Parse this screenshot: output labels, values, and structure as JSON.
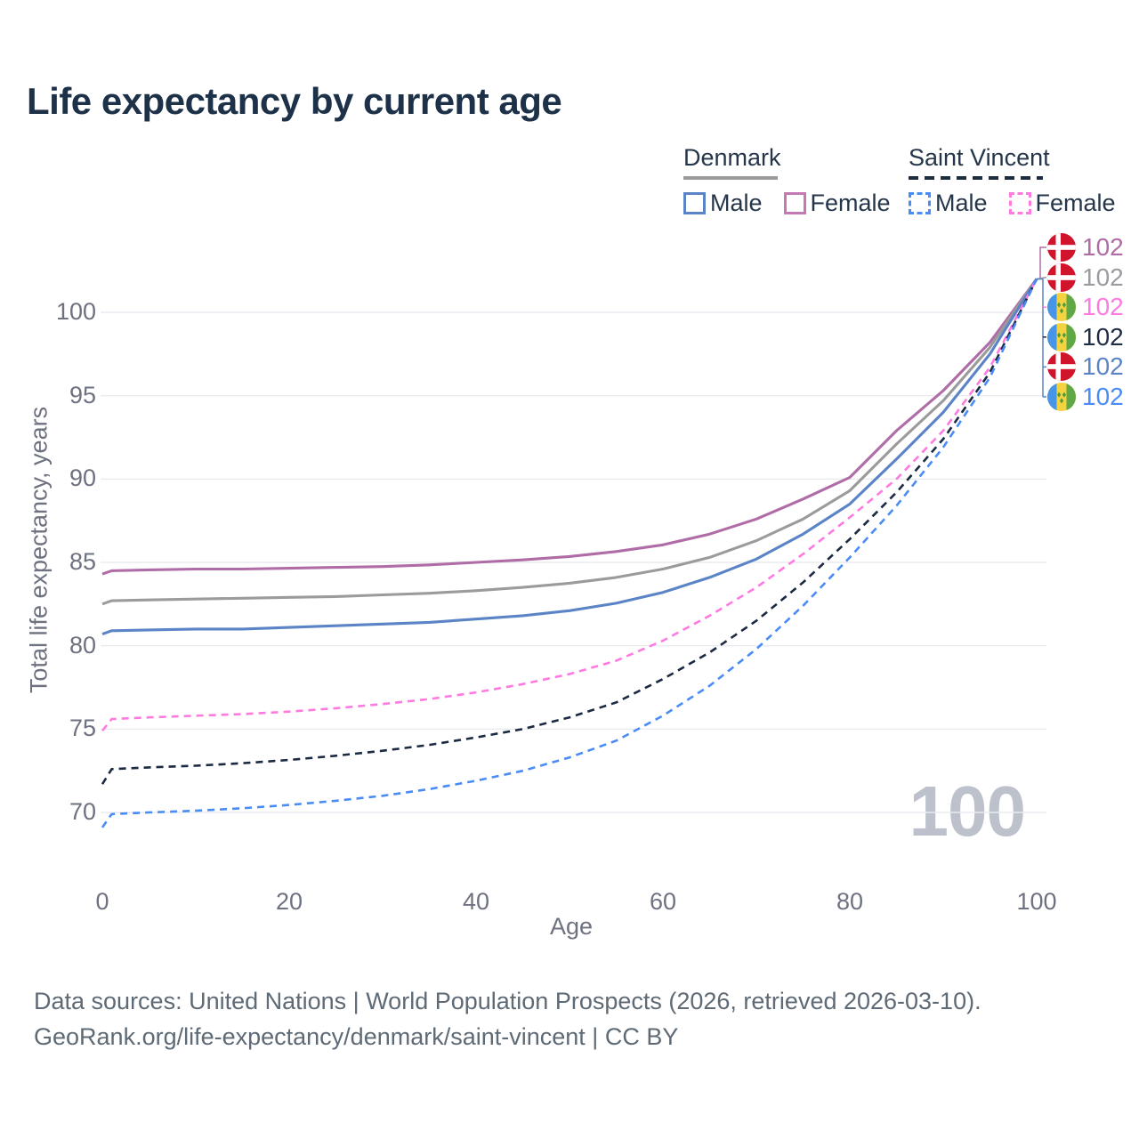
{
  "title": "Life expectancy by current age",
  "legend": {
    "groups": [
      {
        "label": "Denmark",
        "line_style": "solid",
        "underline_color": "#9b9b9b",
        "items": [
          {
            "label": "Male",
            "color": "#5b84c6"
          },
          {
            "label": "Female",
            "color": "#c479b5"
          }
        ]
      },
      {
        "label": "Saint Vincent",
        "line_style": "dashed",
        "underline_color": "#1e2c42",
        "items": [
          {
            "label": "Male",
            "color": "#4a8cf5"
          },
          {
            "label": "Female",
            "color": "#ff7ae0"
          }
        ]
      }
    ]
  },
  "watermark": "100",
  "source_line1": "Data sources: United Nations | World Population Prospects (2026, retrieved 2026-03-10).",
  "source_line2": "GeoRank.org/life-expectancy/denmark/saint-vincent | CC BY",
  "right_labels": [
    {
      "series": "Denmark Female",
      "flag": "denmark",
      "value": "102",
      "color": "#b06ca6"
    },
    {
      "series": "Denmark Both sexes",
      "flag": "denmark",
      "value": "102",
      "color": "#9b9ba1"
    },
    {
      "series": "Saint Vincent Female",
      "flag": "saint-vincent",
      "value": "102",
      "color": "#ff7ae0"
    },
    {
      "series": "Saint Vincent Both sexes",
      "flag": "saint-vincent",
      "value": "102",
      "color": "#1f2d45"
    },
    {
      "series": "Denmark Male",
      "flag": "denmark",
      "value": "102",
      "color": "#5b84c6"
    },
    {
      "series": "Saint Vincent Male",
      "flag": "saint-vincent",
      "value": "102",
      "color": "#4a8cf5"
    }
  ],
  "chart_data": {
    "type": "line",
    "title": "Life expectancy by current age",
    "xlabel": "Age",
    "ylabel": "Total life expectancy, years",
    "xlim": [
      0,
      100
    ],
    "ylim": [
      68,
      103
    ],
    "x_ticks": [
      0,
      20,
      40,
      60,
      80,
      100
    ],
    "y_ticks": [
      70,
      75,
      80,
      85,
      90,
      95,
      100
    ],
    "grid": "horizontal",
    "legend_position": "top-right",
    "x": [
      0,
      1,
      5,
      10,
      15,
      20,
      25,
      30,
      35,
      40,
      45,
      50,
      55,
      60,
      65,
      70,
      75,
      80,
      85,
      90,
      95,
      100
    ],
    "series": [
      {
        "name": "Denmark Female",
        "country": "Denmark",
        "sex": "Female",
        "color": "#b06ca6",
        "dashed": false,
        "values": [
          84.3,
          84.5,
          84.55,
          84.6,
          84.6,
          84.65,
          84.7,
          84.75,
          84.85,
          85.0,
          85.15,
          85.35,
          85.65,
          86.05,
          86.7,
          87.6,
          88.8,
          90.1,
          92.9,
          95.3,
          98.2,
          102
        ]
      },
      {
        "name": "Denmark Both sexes",
        "country": "Denmark",
        "sex": "Both",
        "color": "#9b9b9b",
        "dashed": false,
        "values": [
          82.5,
          82.7,
          82.75,
          82.8,
          82.85,
          82.9,
          82.95,
          83.05,
          83.15,
          83.3,
          83.5,
          83.75,
          84.1,
          84.6,
          85.3,
          86.3,
          87.6,
          89.3,
          92.1,
          94.7,
          97.9,
          102
        ]
      },
      {
        "name": "Denmark Male",
        "country": "Denmark",
        "sex": "Male",
        "color": "#5b84c6",
        "dashed": false,
        "values": [
          80.7,
          80.9,
          80.95,
          81.0,
          81.0,
          81.1,
          81.2,
          81.3,
          81.4,
          81.6,
          81.8,
          82.1,
          82.55,
          83.2,
          84.1,
          85.2,
          86.7,
          88.5,
          91.2,
          94.0,
          97.5,
          102
        ]
      },
      {
        "name": "Saint Vincent Female",
        "country": "Saint Vincent",
        "sex": "Female",
        "color": "#ff7ae0",
        "dashed": true,
        "values": [
          74.9,
          75.6,
          75.7,
          75.8,
          75.9,
          76.05,
          76.25,
          76.5,
          76.8,
          77.2,
          77.7,
          78.3,
          79.1,
          80.3,
          81.8,
          83.5,
          85.5,
          87.7,
          90.0,
          92.9,
          96.7,
          102
        ]
      },
      {
        "name": "Saint Vincent Both sexes",
        "country": "Saint Vincent",
        "sex": "Both",
        "color": "#1b2a42",
        "dashed": true,
        "values": [
          71.7,
          72.6,
          72.7,
          72.8,
          72.95,
          73.15,
          73.4,
          73.7,
          74.05,
          74.5,
          75.0,
          75.7,
          76.6,
          78.0,
          79.6,
          81.5,
          83.8,
          86.4,
          89.2,
          92.4,
          96.4,
          102
        ]
      },
      {
        "name": "Saint Vincent Male",
        "country": "Saint Vincent",
        "sex": "Male",
        "color": "#4a8cf5",
        "dashed": true,
        "values": [
          69.1,
          69.9,
          70.0,
          70.1,
          70.25,
          70.45,
          70.7,
          71.0,
          71.4,
          71.9,
          72.5,
          73.3,
          74.3,
          75.8,
          77.6,
          79.8,
          82.4,
          85.3,
          88.4,
          91.9,
          96.1,
          102
        ]
      }
    ],
    "end_value_label": "102"
  }
}
